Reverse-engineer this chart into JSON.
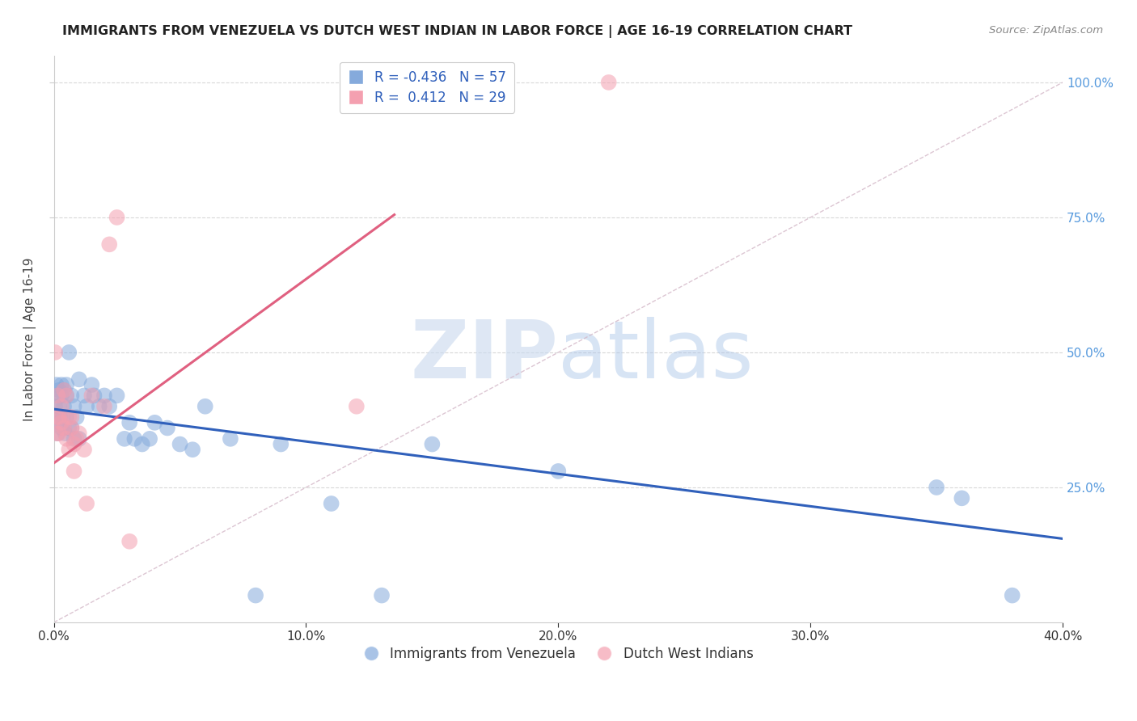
{
  "title": "IMMIGRANTS FROM VENEZUELA VS DUTCH WEST INDIAN IN LABOR FORCE | AGE 16-19 CORRELATION CHART",
  "source": "Source: ZipAtlas.com",
  "ylabel": "In Labor Force | Age 16-19",
  "blue_label": "Immigrants from Venezuela",
  "pink_label": "Dutch West Indians",
  "blue_R": -0.436,
  "blue_N": 57,
  "pink_R": 0.412,
  "pink_N": 29,
  "blue_color": "#85AADC",
  "pink_color": "#F4A0B0",
  "blue_line_color": "#3060BB",
  "pink_line_color": "#E06080",
  "diag_color": "#D4B8C8",
  "grid_color": "#D8D8D8",
  "watermark_color": "#C8D8EE",
  "right_tick_color": "#5599DD",
  "xlim": [
    0.0,
    0.4
  ],
  "ylim": [
    0.0,
    1.05
  ],
  "blue_x": [
    0.0005,
    0.001,
    0.001,
    0.0015,
    0.0015,
    0.002,
    0.002,
    0.002,
    0.0025,
    0.003,
    0.003,
    0.003,
    0.0035,
    0.004,
    0.004,
    0.004,
    0.0045,
    0.005,
    0.005,
    0.005,
    0.006,
    0.006,
    0.007,
    0.007,
    0.008,
    0.008,
    0.009,
    0.01,
    0.01,
    0.012,
    0.013,
    0.015,
    0.016,
    0.018,
    0.02,
    0.022,
    0.025,
    0.028,
    0.03,
    0.032,
    0.035,
    0.038,
    0.04,
    0.045,
    0.05,
    0.055,
    0.06,
    0.07,
    0.08,
    0.09,
    0.11,
    0.13,
    0.15,
    0.2,
    0.35,
    0.36,
    0.38
  ],
  "blue_y": [
    0.4,
    0.44,
    0.38,
    0.42,
    0.35,
    0.4,
    0.37,
    0.43,
    0.38,
    0.44,
    0.36,
    0.42,
    0.38,
    0.4,
    0.36,
    0.43,
    0.35,
    0.44,
    0.38,
    0.42,
    0.5,
    0.36,
    0.42,
    0.36,
    0.4,
    0.34,
    0.38,
    0.45,
    0.34,
    0.42,
    0.4,
    0.44,
    0.42,
    0.4,
    0.42,
    0.4,
    0.42,
    0.34,
    0.37,
    0.34,
    0.33,
    0.34,
    0.37,
    0.36,
    0.33,
    0.32,
    0.4,
    0.34,
    0.05,
    0.33,
    0.22,
    0.05,
    0.33,
    0.28,
    0.25,
    0.23,
    0.05
  ],
  "pink_x": [
    0.0005,
    0.001,
    0.001,
    0.0015,
    0.002,
    0.002,
    0.003,
    0.003,
    0.004,
    0.004,
    0.005,
    0.005,
    0.006,
    0.006,
    0.007,
    0.007,
    0.008,
    0.008,
    0.009,
    0.01,
    0.012,
    0.013,
    0.015,
    0.02,
    0.022,
    0.025,
    0.03,
    0.12,
    0.22
  ],
  "pink_y": [
    0.5,
    0.38,
    0.35,
    0.42,
    0.38,
    0.35,
    0.4,
    0.37,
    0.43,
    0.36,
    0.42,
    0.34,
    0.38,
    0.32,
    0.36,
    0.38,
    0.33,
    0.28,
    0.34,
    0.35,
    0.32,
    0.22,
    0.42,
    0.4,
    0.7,
    0.75,
    0.15,
    0.4,
    1.0
  ],
  "blue_line_x": [
    0.0,
    0.4
  ],
  "blue_line_y": [
    0.395,
    0.155
  ],
  "pink_line_x": [
    0.0,
    0.135
  ],
  "pink_line_y": [
    0.295,
    0.755
  ],
  "diag_line_x": [
    0.0,
    0.4
  ],
  "diag_line_y": [
    0.0,
    1.0
  ]
}
